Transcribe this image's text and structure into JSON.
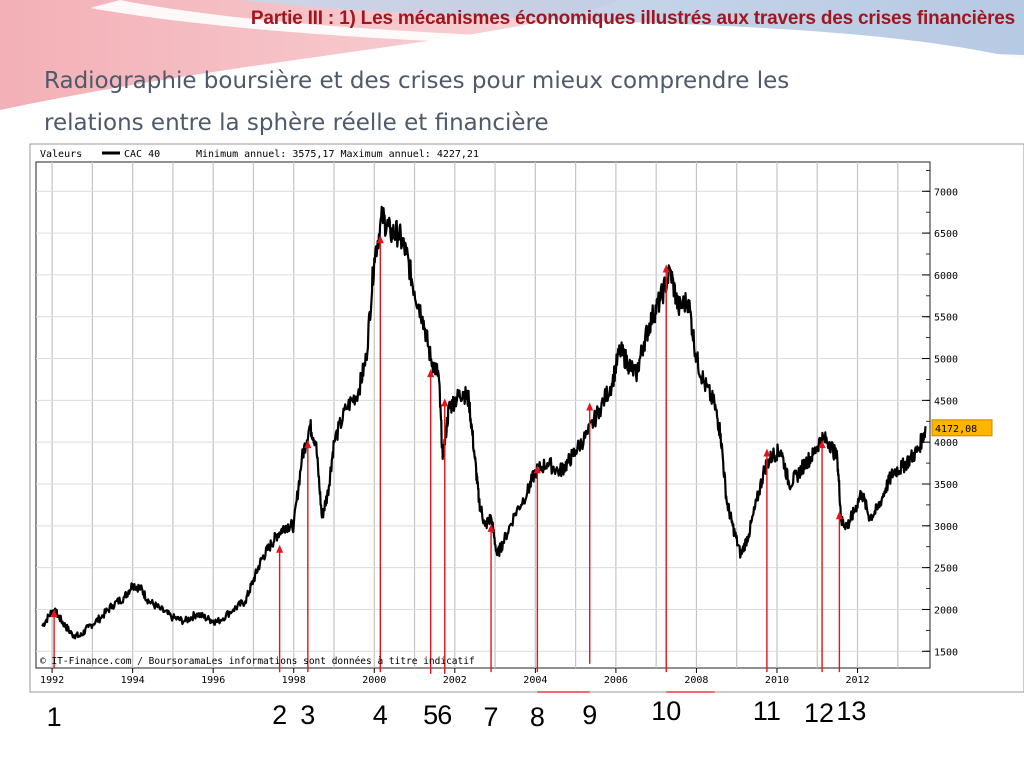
{
  "slide": {
    "title": "Partie III : 1) Les mécanismes économiques illustrés aux travers des crises financières",
    "subtitle_line1": "Radiographie boursière et des crises pour mieux comprendre les",
    "subtitle_line2": "relations entre la sphère réelle et financière"
  },
  "chart_data": {
    "type": "line",
    "header": {
      "valeurs_label": "Valeurs",
      "series_name": "CAC 40",
      "stats": "Minimum annuel: 3575,17 Maximum annuel: 4227,21"
    },
    "footer_note": "© IT-Finance.com / BoursoramaLes informations sont données à titre indicatif",
    "last_value_label": "4172,08",
    "xlim": [
      1991.6,
      2013.8
    ],
    "ylim": [
      1300,
      7350
    ],
    "x_ticks": [
      1992,
      1994,
      1996,
      1998,
      2000,
      2002,
      2004,
      2006,
      2008,
      2010,
      2012
    ],
    "x_tick_labels": [
      "1992",
      "1994",
      "1996",
      "1998",
      "2000",
      "2002",
      "2004",
      "2006",
      "2008",
      "2010",
      "2012"
    ],
    "y_ticks": [
      1500,
      2000,
      2500,
      3000,
      3500,
      4000,
      4500,
      5000,
      5500,
      6000,
      6500,
      7000
    ],
    "y_tick_labels": [
      "1500",
      "2000",
      "2500",
      "3000",
      "3500",
      "4000",
      "4500",
      "5000",
      "5500",
      "6000",
      "6500",
      "7000"
    ],
    "series": [
      {
        "name": "CAC 40",
        "points": [
          [
            1991.75,
            1800
          ],
          [
            1992.0,
            1980
          ],
          [
            1992.1,
            1960
          ],
          [
            1992.3,
            1820
          ],
          [
            1992.5,
            1700
          ],
          [
            1992.7,
            1680
          ],
          [
            1992.9,
            1790
          ],
          [
            1993.2,
            1900
          ],
          [
            1993.5,
            2050
          ],
          [
            1993.8,
            2150
          ],
          [
            1994.0,
            2300
          ],
          [
            1994.2,
            2250
          ],
          [
            1994.4,
            2100
          ],
          [
            1994.7,
            2000
          ],
          [
            1995.0,
            1900
          ],
          [
            1995.3,
            1860
          ],
          [
            1995.6,
            1950
          ],
          [
            1995.9,
            1880
          ],
          [
            1996.1,
            1850
          ],
          [
            1996.5,
            2000
          ],
          [
            1996.8,
            2100
          ],
          [
            1997.0,
            2350
          ],
          [
            1997.2,
            2600
          ],
          [
            1997.4,
            2750
          ],
          [
            1997.6,
            2900
          ],
          [
            1997.8,
            3000
          ],
          [
            1998.0,
            3000
          ],
          [
            1998.2,
            3800
          ],
          [
            1998.4,
            4200
          ],
          [
            1998.55,
            4000
          ],
          [
            1998.7,
            3100
          ],
          [
            1998.85,
            3400
          ],
          [
            1999.0,
            4000
          ],
          [
            1999.3,
            4400
          ],
          [
            1999.6,
            4600
          ],
          [
            1999.8,
            5000
          ],
          [
            2000.0,
            6200
          ],
          [
            2000.2,
            6700
          ],
          [
            2000.4,
            6500
          ],
          [
            2000.6,
            6500
          ],
          [
            2000.8,
            6250
          ],
          [
            2001.0,
            5800
          ],
          [
            2001.2,
            5500
          ],
          [
            2001.4,
            5000
          ],
          [
            2001.6,
            4800
          ],
          [
            2001.7,
            3800
          ],
          [
            2001.85,
            4400
          ],
          [
            2002.0,
            4500
          ],
          [
            2002.2,
            4600
          ],
          [
            2002.35,
            4500
          ],
          [
            2002.5,
            3800
          ],
          [
            2002.6,
            3300
          ],
          [
            2002.75,
            3000
          ],
          [
            2002.9,
            3100
          ],
          [
            2003.05,
            2650
          ],
          [
            2003.2,
            2800
          ],
          [
            2003.5,
            3150
          ],
          [
            2003.8,
            3400
          ],
          [
            2004.0,
            3650
          ],
          [
            2004.3,
            3750
          ],
          [
            2004.6,
            3650
          ],
          [
            2004.8,
            3750
          ],
          [
            2005.0,
            3900
          ],
          [
            2005.3,
            4100
          ],
          [
            2005.6,
            4400
          ],
          [
            2005.9,
            4700
          ],
          [
            2006.1,
            5100
          ],
          [
            2006.3,
            4950
          ],
          [
            2006.5,
            4800
          ],
          [
            2006.7,
            5200
          ],
          [
            2006.9,
            5500
          ],
          [
            2007.1,
            5700
          ],
          [
            2007.35,
            6050
          ],
          [
            2007.55,
            5600
          ],
          [
            2007.8,
            5700
          ],
          [
            2008.0,
            5000
          ],
          [
            2008.2,
            4700
          ],
          [
            2008.45,
            4450
          ],
          [
            2008.6,
            4100
          ],
          [
            2008.75,
            3300
          ],
          [
            2008.9,
            3000
          ],
          [
            2009.1,
            2650
          ],
          [
            2009.3,
            2900
          ],
          [
            2009.5,
            3300
          ],
          [
            2009.7,
            3700
          ],
          [
            2009.9,
            3850
          ],
          [
            2010.1,
            3900
          ],
          [
            2010.3,
            3500
          ],
          [
            2010.5,
            3600
          ],
          [
            2010.7,
            3750
          ],
          [
            2010.9,
            3850
          ],
          [
            2011.1,
            4050
          ],
          [
            2011.3,
            4000
          ],
          [
            2011.5,
            3800
          ],
          [
            2011.6,
            3050
          ],
          [
            2011.75,
            3000
          ],
          [
            2011.9,
            3150
          ],
          [
            2012.1,
            3400
          ],
          [
            2012.3,
            3100
          ],
          [
            2012.5,
            3200
          ],
          [
            2012.7,
            3450
          ],
          [
            2012.9,
            3650
          ],
          [
            2013.1,
            3700
          ],
          [
            2013.3,
            3800
          ],
          [
            2013.5,
            3900
          ],
          [
            2013.7,
            4172
          ]
        ]
      }
    ],
    "annotations": [
      {
        "label": "1",
        "x": 1992.05,
        "y_top": 1980,
        "y_bottom": 1300
      },
      {
        "label": "2",
        "x": 1997.65,
        "y_top": 2750,
        "y_bottom": 1250
      },
      {
        "label": "3",
        "x": 1998.35,
        "y_top": 4000,
        "y_bottom": 1250
      },
      {
        "label": "4",
        "x": 2000.15,
        "y_top": 6450,
        "y_bottom": 1250
      },
      {
        "label": "5",
        "x": 2001.4,
        "y_top": 4850,
        "y_bottom": 1230
      },
      {
        "label": "6",
        "x": 2001.75,
        "y_top": 4500,
        "y_bottom": 1230
      },
      {
        "label": "7",
        "x": 2002.9,
        "y_top": 3000,
        "y_bottom": 1250
      },
      {
        "label": "8",
        "x": 2004.05,
        "y_top": 3700,
        "y_bottom": 1250
      },
      {
        "label": "9",
        "x": 2005.35,
        "y_top": 4450,
        "y_bottom": 1350
      },
      {
        "label": "10",
        "x": 2007.25,
        "y_top": 6100,
        "y_bottom": 1250
      },
      {
        "label": "11",
        "x": 2009.75,
        "y_top": 3900,
        "y_bottom": 1250
      },
      {
        "label": "12",
        "x": 2011.12,
        "y_top": 4000,
        "y_bottom": 1250
      },
      {
        "label": "13",
        "x": 2011.55,
        "y_top": 3150,
        "y_bottom": 1250
      }
    ]
  }
}
